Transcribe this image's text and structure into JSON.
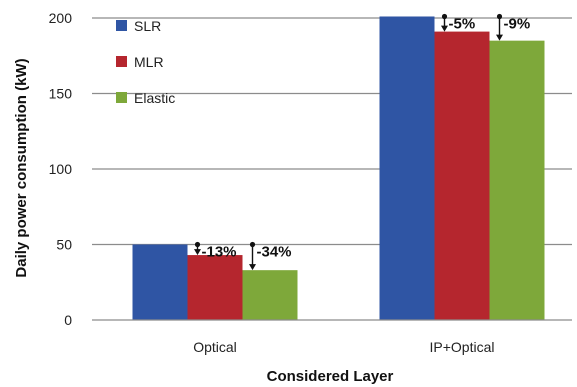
{
  "chart_data": {
    "type": "bar",
    "title": "",
    "xlabel": "Considered Layer",
    "ylabel": "Daily power consumption (kW)",
    "ylim": [
      0,
      200
    ],
    "yticks": [
      0,
      50,
      100,
      150,
      200
    ],
    "grid": true,
    "legend_position": "top-left",
    "categories": [
      "Optical",
      "IP+Optical"
    ],
    "series": [
      {
        "name": "SLR",
        "color": "#2f55a4",
        "values": [
          50,
          201
        ]
      },
      {
        "name": "MLR",
        "color": "#b5262e",
        "values": [
          43,
          191
        ]
      },
      {
        "name": "Elastic",
        "color": "#7ea83a",
        "values": [
          33,
          185
        ]
      }
    ],
    "annotations": [
      {
        "text": "-13%",
        "category": "Optical",
        "series": "MLR",
        "from_value": 50,
        "to_value": 43
      },
      {
        "text": "-34%",
        "category": "Optical",
        "series": "Elastic",
        "from_value": 50,
        "to_value": 33
      },
      {
        "text": "-5%",
        "category": "IP+Optical",
        "series": "MLR",
        "from_value": 201,
        "to_value": 191
      },
      {
        "text": "-9%",
        "category": "IP+Optical",
        "series": "Elastic",
        "from_value": 201,
        "to_value": 185
      }
    ]
  }
}
